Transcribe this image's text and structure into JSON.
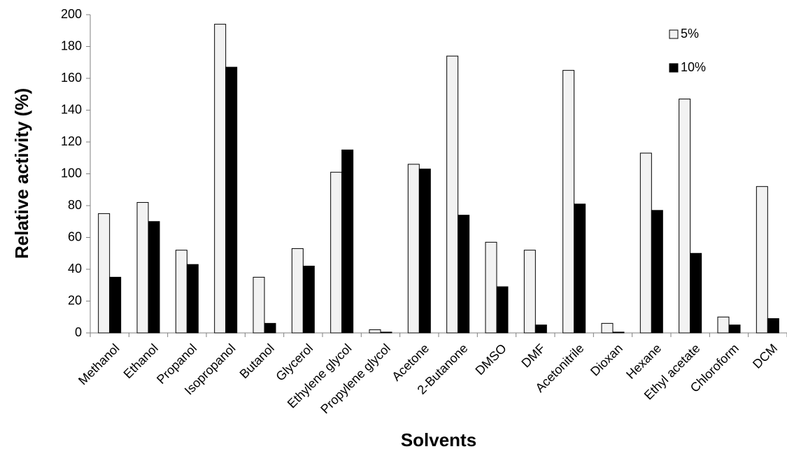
{
  "chart_data": {
    "type": "bar",
    "categories": [
      "Methanol",
      "Ethanol",
      "Propanol",
      "Isopropanol",
      "Butanol",
      "Glycerol",
      "Ethylene glycol",
      "Propylene glycol",
      "Acetone",
      "2-Butanone",
      "DMSO",
      "DMF",
      "Acetonitrile",
      "Dioxan",
      "Hexane",
      "Ethyl acetate",
      "Chloroform",
      "DCM"
    ],
    "series": [
      {
        "name": "5%",
        "color": "#f2f2f2",
        "values": [
          75,
          82,
          52,
          194,
          35,
          53,
          101,
          2,
          106,
          174,
          57,
          52,
          165,
          6,
          113,
          147,
          10,
          92
        ]
      },
      {
        "name": "10%",
        "color": "#000000",
        "values": [
          35,
          70,
          43,
          167,
          6,
          42,
          115,
          0.5,
          103,
          74,
          29,
          5,
          81,
          0.5,
          77,
          50,
          5,
          9
        ]
      }
    ],
    "xlabel": "Solvents",
    "ylabel": "Relative activity (%)",
    "ylim": [
      0,
      200
    ],
    "yticks": [
      0,
      20,
      40,
      60,
      80,
      100,
      120,
      140,
      160,
      180,
      200
    ],
    "grid": false,
    "legend_position": "top-right"
  }
}
